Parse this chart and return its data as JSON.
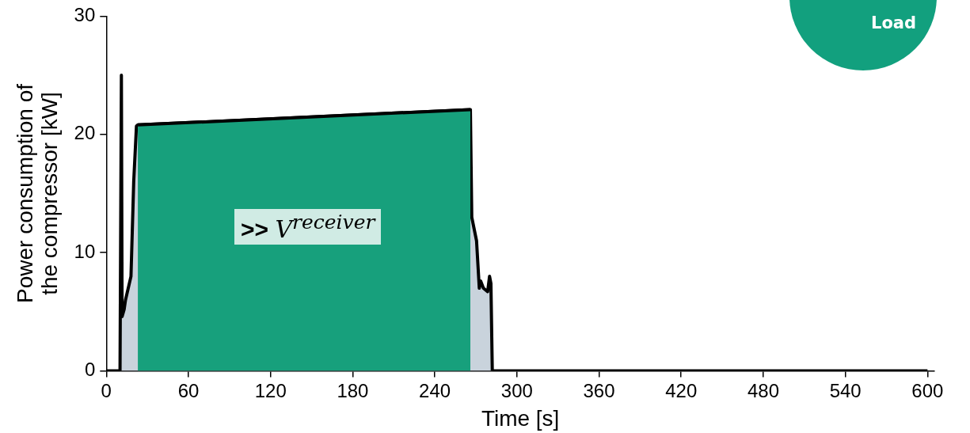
{
  "chart_data": {
    "type": "area",
    "xlabel": "Time [s]",
    "ylabel": "Power consumption of the compressor [kW]",
    "series": [
      {
        "color": "#c9d3dc",
        "x": [
          0,
          10,
          11,
          11.5,
          13,
          14,
          18,
          20,
          22,
          23,
          266,
          267,
          270.5,
          272.5,
          273.5,
          275.5,
          278.6,
          280,
          281,
          282,
          600
        ],
        "values": [
          0,
          0,
          25,
          4.6,
          5.2,
          6,
          8,
          16,
          20.7,
          20.8,
          22.1,
          13,
          11,
          7,
          7.6,
          7,
          6.7,
          8,
          7.4,
          0,
          0
        ]
      },
      {
        "type": "area",
        "color": "#17a07c",
        "x": [
          23,
          266
        ],
        "values": [
          20.8,
          22.1
        ]
      }
    ],
    "xlim": [
      0,
      605
    ],
    "xticks": [
      0,
      60,
      120,
      180,
      240,
      300,
      360,
      420,
      480,
      540,
      600
    ],
    "ylim": [
      0,
      30
    ],
    "yticks": [
      0,
      10,
      20,
      30
    ],
    "grid": false,
    "legend": false,
    "marker": "none",
    "line_style": "solid",
    "annotations": [
      ">> V$^{receiver}$",
      "Load"
    ]
  }
}
